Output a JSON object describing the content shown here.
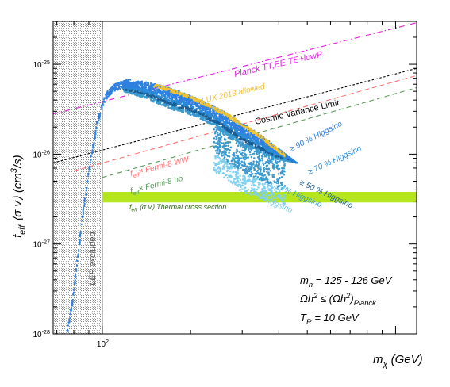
{
  "chart_data": {
    "type": "scatter",
    "x_scale": "log",
    "y_scale": "log",
    "xlim": [
      68,
      1180
    ],
    "ylim": [
      1e-28,
      3e-25
    ],
    "xlabel": "m_χ (GeV)",
    "ylabel": "f_eff ⟨σ v⟩ (cm³/s)",
    "x_tick_labels": [
      "10²"
    ],
    "y_tick_labels": [
      "10⁻²⁸",
      "10⁻²⁷",
      "10⁻²⁶",
      "10⁻²⁵"
    ],
    "lep_excluded": {
      "x_max": 100,
      "label": "LEP excluded"
    },
    "thermal_band": {
      "y_low": 2.9e-27,
      "y_high": 3.8e-27,
      "label": "f_eff ⟨σ v⟩  Thermal cross section",
      "color": "#b5e61d"
    },
    "limits": [
      {
        "name": "Planck TT,EE,TE+lowP",
        "color": "#e020e0",
        "dash": "dashdot",
        "points": [
          [
            68,
            2.8e-26
          ],
          [
            1180,
            2.9e-25
          ]
        ]
      },
      {
        "name": "Cosmic Variance Limit",
        "color": "#000000",
        "dash": "dot",
        "points": [
          [
            68,
            8e-27
          ],
          [
            1180,
            9e-26
          ]
        ]
      },
      {
        "name": "f_eff × Fermi-8 WW",
        "color": "#ff7070",
        "dash": "dash",
        "points": [
          [
            80,
            6.5e-27
          ],
          [
            1180,
            7.5e-26
          ]
        ]
      },
      {
        "name": "f_eff × Fermi-8 bb",
        "color": "#5a9a5a",
        "dash": "dash",
        "points": [
          [
            100,
            5.5e-27
          ],
          [
            1180,
            5.5e-26
          ]
        ]
      }
    ],
    "regions": [
      {
        "name": "≥ 10 % Higgsino",
        "color": "#7fd0ee"
      },
      {
        "name": "≥ 30 % Higgsino",
        "color": "#3a9ad0"
      },
      {
        "name": "≥ 50 % Higgsino",
        "color": "#1a5f95"
      },
      {
        "name": "≥ 70 % Higgsino",
        "color": "#2a8ad8"
      },
      {
        "name": "≥ 90 % Higgsino",
        "color": "#2f80e0"
      },
      {
        "name": "LUX 2013 allowed",
        "color": "#f2c230"
      }
    ],
    "rising_branch": [
      [
        76,
        1e-28
      ],
      [
        80,
        3e-28
      ],
      [
        84,
        1.2e-27
      ],
      [
        88,
        4e-27
      ],
      [
        92,
        1e-26
      ],
      [
        96,
        2.2e-26
      ],
      [
        100,
        3.5e-26
      ],
      [
        104,
        4.6e-26
      ],
      [
        110,
        5.5e-26
      ],
      [
        118,
        6e-26
      ],
      [
        125,
        6.2e-26
      ]
    ],
    "upper_edge": [
      [
        118,
        6.1e-26
      ],
      [
        135,
        6.5e-26
      ],
      [
        160,
        5.8e-26
      ],
      [
        200,
        4.5e-26
      ],
      [
        260,
        3e-26
      ],
      [
        350,
        1.6e-26
      ],
      [
        460,
        8e-27
      ]
    ],
    "lower_edge": [
      [
        118,
        5e-26
      ],
      [
        140,
        4.2e-26
      ],
      [
        170,
        3.2e-26
      ],
      [
        210,
        2.6e-26
      ],
      [
        250,
        1.9e-26
      ],
      [
        300,
        1.25e-26
      ],
      [
        380,
        9e-27
      ],
      [
        460,
        8e-27
      ]
    ],
    "annotations": [
      {
        "text": "m_h = 125 - 126 GeV"
      },
      {
        "text": "Ωh² ≤ (Ωh²)_Planck"
      },
      {
        "text": "T_R = 10 GeV"
      }
    ]
  }
}
